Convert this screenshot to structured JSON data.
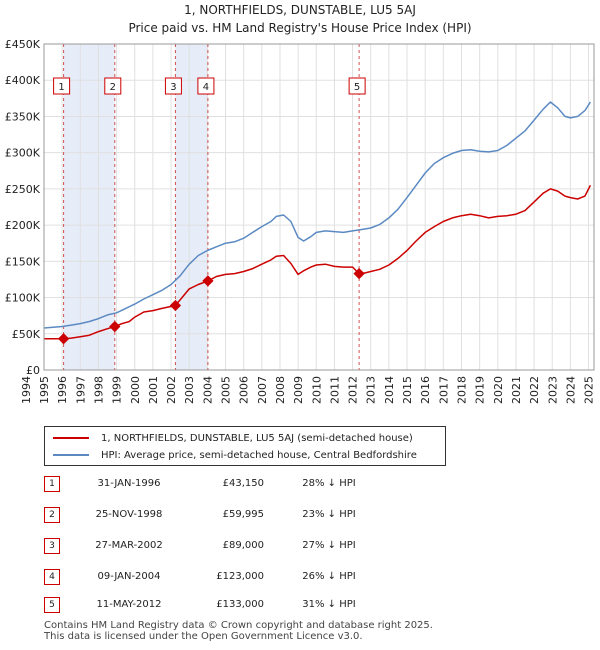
{
  "chart_data": {
    "type": "line",
    "title": "1, NORTHFIELDS, DUNSTABLE, LU5 5AJ",
    "subtitle": "Price paid vs. HM Land Registry's House Price Index (HPI)",
    "xlim": [
      1995.0,
      2025.3
    ],
    "ylim": [
      0,
      450000
    ],
    "x_ticks": [
      1994,
      1995,
      1996,
      1997,
      1998,
      1999,
      2000,
      2001,
      2002,
      2003,
      2004,
      2005,
      2006,
      2007,
      2008,
      2009,
      2010,
      2011,
      2012,
      2013,
      2014,
      2015,
      2016,
      2017,
      2018,
      2019,
      2020,
      2021,
      2022,
      2023,
      2024,
      2025
    ],
    "y_ticks": [
      {
        "value": 0,
        "label": "£0"
      },
      {
        "value": 50000,
        "label": "£50K"
      },
      {
        "value": 100000,
        "label": "£100K"
      },
      {
        "value": 150000,
        "label": "£150K"
      },
      {
        "value": 200000,
        "label": "£200K"
      },
      {
        "value": 250000,
        "label": "£250K"
      },
      {
        "value": 300000,
        "label": "£300K"
      },
      {
        "value": 350000,
        "label": "£350K"
      },
      {
        "value": 400000,
        "label": "£400K"
      },
      {
        "value": 450000,
        "label": "£450K"
      }
    ],
    "shaded_ranges": [
      [
        1996.08,
        1998.9
      ],
      [
        2002.24,
        2004.03
      ]
    ],
    "series": [
      {
        "name": "1, NORTHFIELDS, DUNSTABLE, LU5 5AJ (semi-detached house)",
        "color": "#cc0000",
        "x": [
          1995.0,
          1995.5,
          1996.08,
          1996.5,
          1997.0,
          1997.5,
          1998.0,
          1998.5,
          1998.9,
          1999.3,
          1999.7,
          2000.0,
          2000.5,
          2001.0,
          2001.5,
          2002.24,
          2002.6,
          2003.0,
          2003.5,
          2004.03,
          2004.5,
          2005.0,
          2005.5,
          2006.0,
          2006.5,
          2007.0,
          2007.5,
          2007.8,
          2008.2,
          2008.6,
          2009.0,
          2009.3,
          2009.7,
          2010.0,
          2010.5,
          2011.0,
          2011.5,
          2012.0,
          2012.36,
          2012.7,
          2013.0,
          2013.5,
          2014.0,
          2014.5,
          2015.0,
          2015.5,
          2016.0,
          2016.5,
          2017.0,
          2017.5,
          2018.0,
          2018.5,
          2019.0,
          2019.5,
          2020.0,
          2020.5,
          2021.0,
          2021.5,
          2022.0,
          2022.5,
          2022.9,
          2023.3,
          2023.7,
          2024.0,
          2024.4,
          2024.8,
          2025.1
        ],
        "y": [
          43000,
          43000,
          43150,
          44000,
          46000,
          48000,
          53000,
          57000,
          59995,
          64000,
          67000,
          73000,
          80000,
          82000,
          85000,
          89000,
          100000,
          112000,
          118000,
          123000,
          129000,
          132000,
          133000,
          136000,
          140000,
          146000,
          152000,
          157000,
          158000,
          147000,
          132000,
          137000,
          142000,
          145000,
          146000,
          143000,
          142000,
          142000,
          133000,
          134000,
          136000,
          139000,
          145000,
          154000,
          165000,
          178000,
          190000,
          198000,
          205000,
          210000,
          213000,
          215000,
          213000,
          210000,
          212000,
          213000,
          215000,
          220000,
          232000,
          244000,
          250000,
          247000,
          240000,
          238000,
          236000,
          240000,
          255000
        ]
      },
      {
        "name": "HPI: Average price, semi-detached house, Central Bedfordshire",
        "color": "#5b8ac3",
        "x": [
          1995.0,
          1995.5,
          1996.0,
          1996.5,
          1997.0,
          1997.5,
          1998.0,
          1998.5,
          1999.0,
          1999.5,
          2000.0,
          2000.5,
          2001.0,
          2001.5,
          2002.0,
          2002.5,
          2003.0,
          2003.5,
          2004.0,
          2004.5,
          2005.0,
          2005.5,
          2006.0,
          2006.5,
          2007.0,
          2007.5,
          2007.8,
          2008.2,
          2008.6,
          2009.0,
          2009.3,
          2009.7,
          2010.0,
          2010.5,
          2011.0,
          2011.5,
          2012.0,
          2012.5,
          2013.0,
          2013.5,
          2014.0,
          2014.5,
          2015.0,
          2015.5,
          2016.0,
          2016.5,
          2017.0,
          2017.5,
          2018.0,
          2018.5,
          2019.0,
          2019.5,
          2020.0,
          2020.5,
          2021.0,
          2021.5,
          2022.0,
          2022.5,
          2022.9,
          2023.3,
          2023.7,
          2024.0,
          2024.4,
          2024.8,
          2025.1
        ],
        "y": [
          58000,
          59000,
          60000,
          62000,
          64000,
          67000,
          71000,
          76000,
          79000,
          85000,
          91000,
          98000,
          104000,
          110000,
          118000,
          130000,
          146000,
          158000,
          165000,
          170000,
          175000,
          177000,
          182000,
          190000,
          198000,
          205000,
          212000,
          214000,
          205000,
          183000,
          178000,
          184000,
          190000,
          192000,
          191000,
          190000,
          192000,
          194000,
          196000,
          201000,
          210000,
          222000,
          238000,
          255000,
          272000,
          285000,
          293000,
          299000,
          303000,
          304000,
          302000,
          301000,
          303000,
          310000,
          320000,
          330000,
          345000,
          360000,
          370000,
          362000,
          350000,
          348000,
          350000,
          358000,
          370000
        ]
      }
    ],
    "transactions": [
      {
        "num": "1",
        "x": 1996.08,
        "price": 43150,
        "date": "31-JAN-1996",
        "price_label": "£43,150",
        "hpi": "28% ↓ HPI"
      },
      {
        "num": "2",
        "x": 1998.9,
        "price": 59995,
        "date": "25-NOV-1998",
        "price_label": "£59,995",
        "hpi": "23% ↓ HPI"
      },
      {
        "num": "3",
        "x": 2002.24,
        "price": 89000,
        "date": "27-MAR-2002",
        "price_label": "£89,000",
        "hpi": "27% ↓ HPI"
      },
      {
        "num": "4",
        "x": 2004.03,
        "price": 123000,
        "date": "09-JAN-2004",
        "price_label": "£123,000",
        "hpi": "26% ↓ HPI"
      },
      {
        "num": "5",
        "x": 2012.36,
        "price": 133000,
        "date": "11-MAY-2012",
        "price_label": "£133,000",
        "hpi": "31% ↓ HPI"
      }
    ]
  },
  "legend": {
    "property_label": "1, NORTHFIELDS, DUNSTABLE, LU5 5AJ (semi-detached house)",
    "hpi_label": "HPI: Average price, semi-detached house, Central Bedfordshire"
  },
  "footer": {
    "line1": "Contains HM Land Registry data © Crown copyright and database right 2025.",
    "line2": "This data is licensed under the Open Government Licence v3.0."
  }
}
